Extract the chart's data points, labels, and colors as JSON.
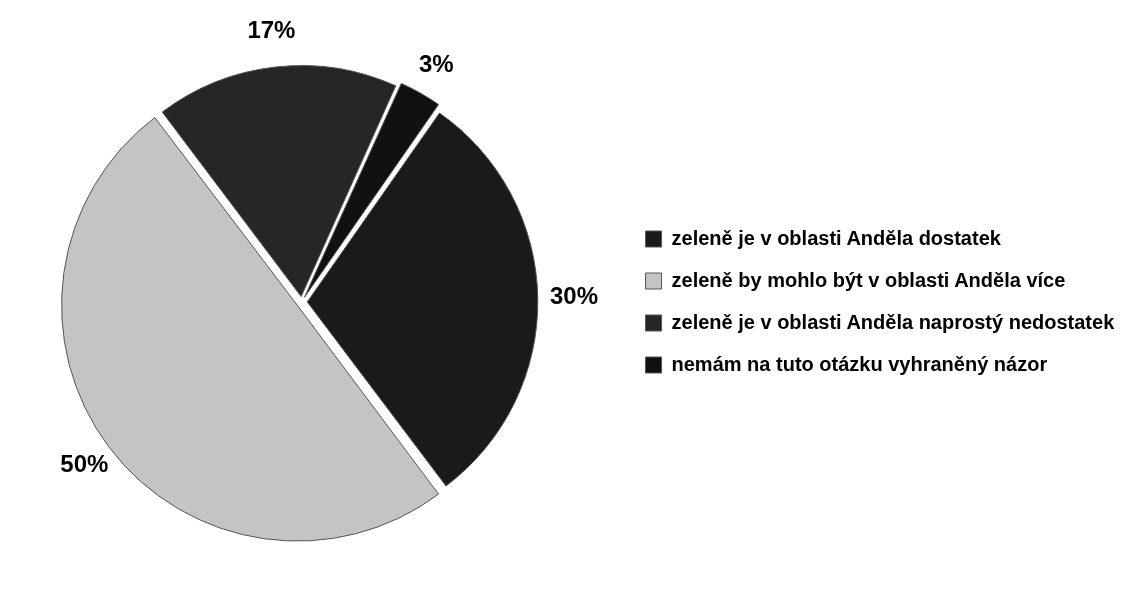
{
  "chart_data": {
    "type": "pie",
    "categories": [
      "zeleně je v oblasti Anděla dostatek",
      "zeleně by mohlo být v oblasti Anděla více",
      "zeleně je v oblasti Anděla naprostý nedostatek",
      "nemám na tuto otázku vyhraněný názor"
    ],
    "values": [
      30,
      50,
      17,
      3
    ],
    "value_labels": [
      "30%",
      "50%",
      "17%",
      "3%"
    ],
    "colors": [
      "#1a1a1a",
      "#c4c4c4",
      "#262626",
      "#111111"
    ],
    "legend": "right"
  }
}
